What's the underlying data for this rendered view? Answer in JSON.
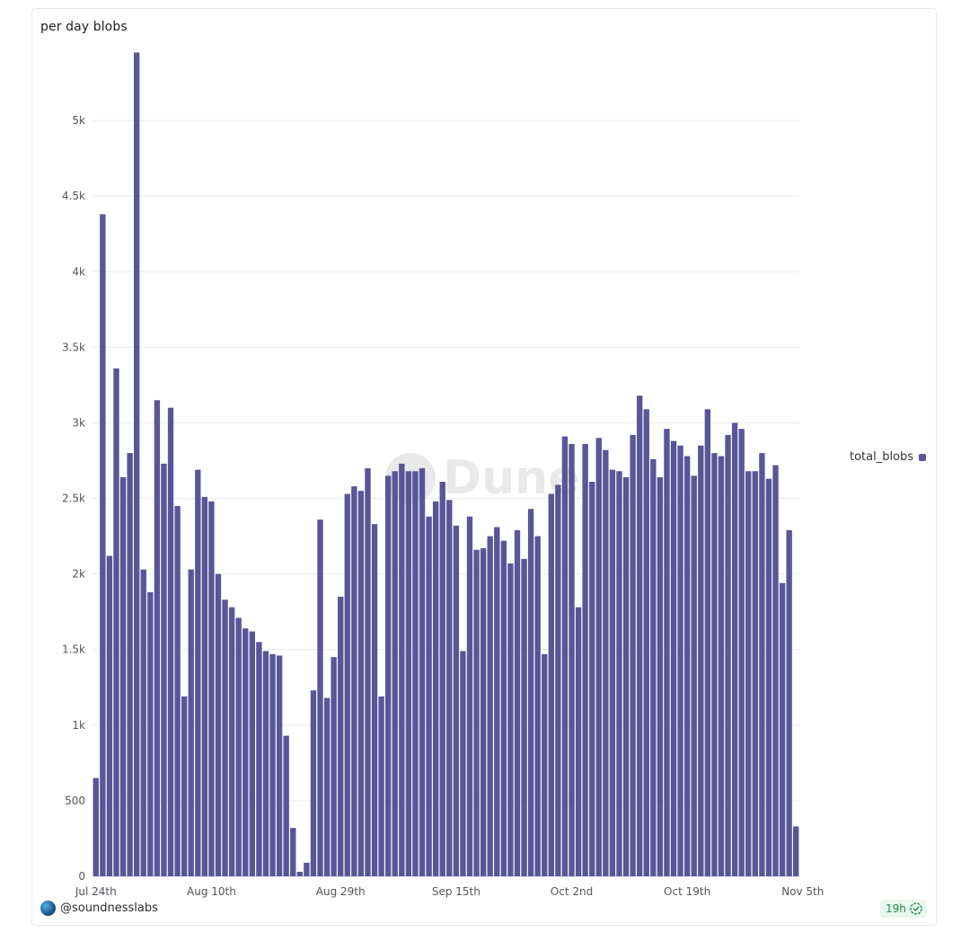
{
  "title": "per day blobs",
  "legend": {
    "label": "total_blobs",
    "color": "#5a5597"
  },
  "watermark": "Dune",
  "footer": {
    "username": "@soundnesslabs",
    "refresh_badge": "19h"
  },
  "colors": {
    "bar": "#5a5597",
    "grid": "#ececef",
    "badge_bg": "#e9f7ee",
    "badge_text": "#1e8a4c"
  },
  "chart_data": {
    "type": "bar",
    "title": "per day blobs",
    "xlabel": "",
    "ylabel": "",
    "ylim": [
      0,
      5500
    ],
    "yticks": [
      0,
      500,
      1000,
      1500,
      2000,
      2500,
      3000,
      3500,
      4000,
      4500,
      5000
    ],
    "ytick_labels": [
      "0",
      "500",
      "1k",
      "1.5k",
      "2k",
      "2.5k",
      "3k",
      "3.5k",
      "4k",
      "4.5k",
      "5k"
    ],
    "xtick_labels": [
      {
        "index": 0,
        "label": "Jul 24th"
      },
      {
        "index": 17,
        "label": "Aug 10th"
      },
      {
        "index": 36,
        "label": "Aug 29th"
      },
      {
        "index": 53,
        "label": "Sep 15th"
      },
      {
        "index": 70,
        "label": "Oct 2nd"
      },
      {
        "index": 87,
        "label": "Oct 19th"
      },
      {
        "index": 104,
        "label": "Nov 5th"
      }
    ],
    "grid": true,
    "legend_position": "right",
    "series": [
      {
        "name": "total_blobs",
        "values": [
          650,
          4380,
          2120,
          3360,
          2640,
          2800,
          5450,
          2030,
          1880,
          3150,
          2730,
          3100,
          2450,
          1190,
          2030,
          2690,
          2510,
          2480,
          2000,
          1830,
          1780,
          1710,
          1640,
          1620,
          1550,
          1490,
          1470,
          1460,
          930,
          320,
          30,
          90,
          1230,
          2360,
          1180,
          1450,
          1850,
          2530,
          2580,
          2550,
          2700,
          2330,
          1190,
          2650,
          2680,
          2730,
          2680,
          2680,
          2700,
          2380,
          2480,
          2610,
          2490,
          2320,
          1490,
          2380,
          2160,
          2170,
          2250,
          2310,
          2220,
          2070,
          2290,
          2100,
          2430,
          2250,
          1470,
          2530,
          2590,
          2910,
          2860,
          1780,
          2860,
          2610,
          2900,
          2820,
          2690,
          2680,
          2640,
          2920,
          3180,
          3090,
          2760,
          2640,
          2960,
          2880,
          2850,
          2780,
          2650,
          2850,
          3090,
          2800,
          2780,
          2920,
          3000,
          2960,
          2680,
          2680,
          2800,
          2630,
          2720,
          1940,
          2290,
          330
        ]
      }
    ]
  }
}
